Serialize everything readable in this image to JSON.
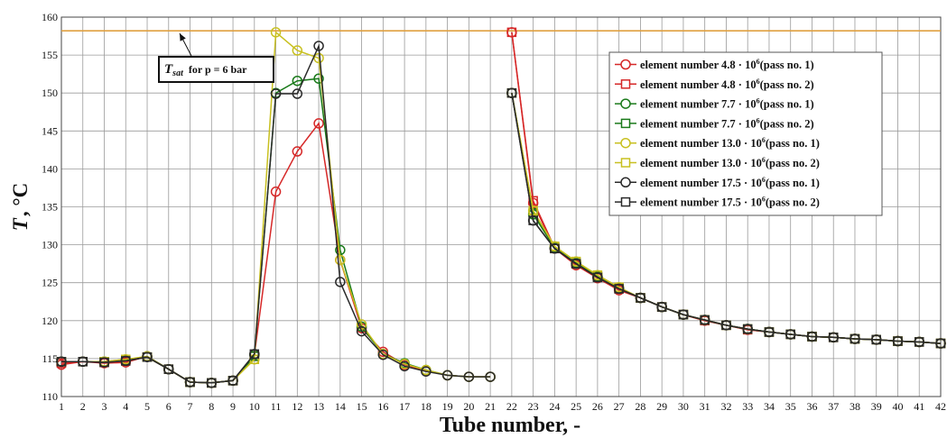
{
  "chart_data": {
    "type": "line",
    "xlabel": "Tube number, -",
    "ylabel_main": "T",
    "ylabel_unit": "°C",
    "xlim": [
      1,
      42
    ],
    "ylim": [
      110,
      160
    ],
    "y_ticks": [
      110,
      115,
      120,
      125,
      130,
      135,
      140,
      145,
      150,
      155,
      160
    ],
    "x_ticks": [
      1,
      2,
      3,
      4,
      5,
      6,
      7,
      8,
      9,
      10,
      11,
      12,
      13,
      14,
      15,
      16,
      17,
      18,
      19,
      20,
      21,
      22,
      23,
      24,
      25,
      26,
      27,
      28,
      29,
      30,
      31,
      32,
      33,
      34,
      35,
      36,
      37,
      38,
      39,
      40,
      41,
      42
    ],
    "grid": true,
    "legend_position": "top-right",
    "reference_line": {
      "y": 158.2,
      "color": "#e0a040"
    },
    "annotation": {
      "symbol": "T",
      "subscript": "sat",
      "text": "for p = 6 bar"
    },
    "x_groups": [
      [
        1,
        2,
        3,
        4,
        5,
        6,
        7,
        8,
        9,
        10,
        11,
        12,
        13,
        14,
        15,
        16,
        17,
        18,
        19,
        20,
        21
      ],
      [
        22,
        23,
        24,
        25,
        26,
        27,
        28,
        29,
        30,
        31,
        32,
        33,
        34,
        35,
        36,
        37,
        38,
        39,
        40,
        41,
        42
      ]
    ],
    "series": [
      {
        "label_prefix": "element number 4.8 · 10",
        "exp": "6",
        "label_suffix": "(pass no. 1)",
        "color": "#d62828",
        "marker": "circle",
        "values": [
          [
            114.2,
            114.6,
            114.4,
            114.5,
            115.3,
            113.6,
            111.9,
            111.8,
            112.1,
            115.5,
            137.0,
            142.3,
            146.0,
            128.0,
            119.0,
            115.9,
            114.2,
            113.4,
            112.8,
            112.6,
            112.6
          ],
          [
            158.0,
            135.5,
            129.5,
            127.3,
            125.6,
            124.0,
            123.0,
            121.8,
            120.8,
            120.0,
            119.4,
            118.8,
            118.5,
            118.2,
            117.9,
            117.8,
            117.6,
            117.5,
            117.3,
            117.2,
            117.0
          ]
        ]
      },
      {
        "label_prefix": "element number 4.8 · 10",
        "exp": "6",
        "label_suffix": "(pass no. 2)",
        "color": "#d62828",
        "marker": "square",
        "values": [
          [
            114.4,
            114.6,
            114.5,
            114.7,
            115.2,
            113.6,
            111.9,
            111.8,
            112.1,
            115.3,
            null,
            null,
            null,
            null,
            null,
            null,
            null,
            null,
            null,
            null,
            null
          ],
          [
            158.0,
            135.8,
            129.6,
            127.5,
            125.8,
            124.2,
            123.0,
            121.8,
            120.8,
            120.0,
            119.4,
            118.8,
            118.5,
            118.2,
            117.9,
            117.8,
            117.6,
            117.5,
            117.3,
            117.2,
            117.0
          ]
        ]
      },
      {
        "label_prefix": "element number 7.7 · 10",
        "exp": "6",
        "label_suffix": "(pass no. 1)",
        "color": "#1a7a1a",
        "marker": "circle",
        "values": [
          [
            114.6,
            114.6,
            114.6,
            114.8,
            115.3,
            113.6,
            111.9,
            111.8,
            112.1,
            115.5,
            150.0,
            151.6,
            151.9,
            129.3,
            119.2,
            115.6,
            114.4,
            113.5,
            112.8,
            112.6,
            112.6
          ],
          [
            150.0,
            134.0,
            129.6,
            127.6,
            125.8,
            124.3,
            123.0,
            121.8,
            120.8,
            120.1,
            119.4,
            118.9,
            118.5,
            118.2,
            117.9,
            117.8,
            117.6,
            117.5,
            117.3,
            117.2,
            117.0
          ]
        ]
      },
      {
        "label_prefix": "element number 7.7 · 10",
        "exp": "6",
        "label_suffix": "(pass no. 2)",
        "color": "#1a7a1a",
        "marker": "square",
        "values": [
          [
            114.6,
            114.6,
            114.6,
            114.8,
            115.2,
            113.6,
            111.9,
            111.8,
            112.1,
            115.3,
            null,
            null,
            null,
            null,
            null,
            null,
            null,
            null,
            null,
            null,
            null
          ],
          [
            150.0,
            134.2,
            129.6,
            127.6,
            125.8,
            124.3,
            123.0,
            121.8,
            120.8,
            120.1,
            119.4,
            118.9,
            118.5,
            118.2,
            117.9,
            117.8,
            117.6,
            117.5,
            117.3,
            117.2,
            117.0
          ]
        ]
      },
      {
        "label_prefix": "element number 13.0 · 10",
        "exp": "6",
        "label_suffix": "(pass no. 1)",
        "color": "#c8c020",
        "marker": "circle",
        "values": [
          [
            114.6,
            114.6,
            114.6,
            114.9,
            115.3,
            113.6,
            111.9,
            111.8,
            112.1,
            114.9,
            158.0,
            155.6,
            154.6,
            128.0,
            119.5,
            115.6,
            114.3,
            113.5,
            112.8,
            112.6,
            112.6
          ],
          [
            150.0,
            134.5,
            129.8,
            127.8,
            126.0,
            124.4,
            123.0,
            121.8,
            120.8,
            120.1,
            119.4,
            118.9,
            118.5,
            118.2,
            117.9,
            117.8,
            117.6,
            117.5,
            117.3,
            117.2,
            117.0
          ]
        ]
      },
      {
        "label_prefix": "element number 13.0 · 10",
        "exp": "6",
        "label_suffix": "(pass no. 2)",
        "color": "#c8c020",
        "marker": "square",
        "values": [
          [
            114.6,
            114.6,
            114.6,
            114.9,
            115.2,
            113.6,
            111.9,
            111.8,
            112.1,
            114.9,
            null,
            null,
            null,
            null,
            null,
            null,
            null,
            null,
            null,
            null,
            null
          ],
          [
            150.0,
            134.5,
            129.8,
            127.8,
            126.0,
            124.4,
            123.0,
            121.8,
            120.8,
            120.1,
            119.4,
            118.9,
            118.5,
            118.2,
            117.9,
            117.8,
            117.6,
            117.5,
            117.3,
            117.2,
            117.0
          ]
        ]
      },
      {
        "label_prefix": "element number 17.5 · 10",
        "exp": "6",
        "label_suffix": "(pass no. 1)",
        "color": "#2a2a2a",
        "marker": "circle",
        "values": [
          [
            114.6,
            114.6,
            114.5,
            114.7,
            115.2,
            113.6,
            111.9,
            111.8,
            112.1,
            115.6,
            149.9,
            149.9,
            156.2,
            125.1,
            118.6,
            115.5,
            114.0,
            113.3,
            112.8,
            112.6,
            112.6
          ],
          [
            150.0,
            133.2,
            129.5,
            127.5,
            125.7,
            124.2,
            123.0,
            121.8,
            120.8,
            120.1,
            119.4,
            118.9,
            118.5,
            118.2,
            117.9,
            117.8,
            117.6,
            117.5,
            117.3,
            117.2,
            117.0
          ]
        ]
      },
      {
        "label_prefix": "element number 17.5 · 10",
        "exp": "6",
        "label_suffix": "(pass no. 2)",
        "color": "#2a2a2a",
        "marker": "square",
        "values": [
          [
            114.6,
            114.6,
            114.5,
            114.7,
            115.2,
            113.6,
            111.9,
            111.8,
            112.1,
            115.6,
            null,
            null,
            null,
            null,
            null,
            null,
            null,
            null,
            null,
            null,
            null
          ],
          [
            150.0,
            133.2,
            129.5,
            127.5,
            125.7,
            124.2,
            123.0,
            121.8,
            120.8,
            120.1,
            119.4,
            118.9,
            118.5,
            118.2,
            117.9,
            117.8,
            117.6,
            117.5,
            117.3,
            117.2,
            117.0
          ]
        ]
      }
    ]
  }
}
